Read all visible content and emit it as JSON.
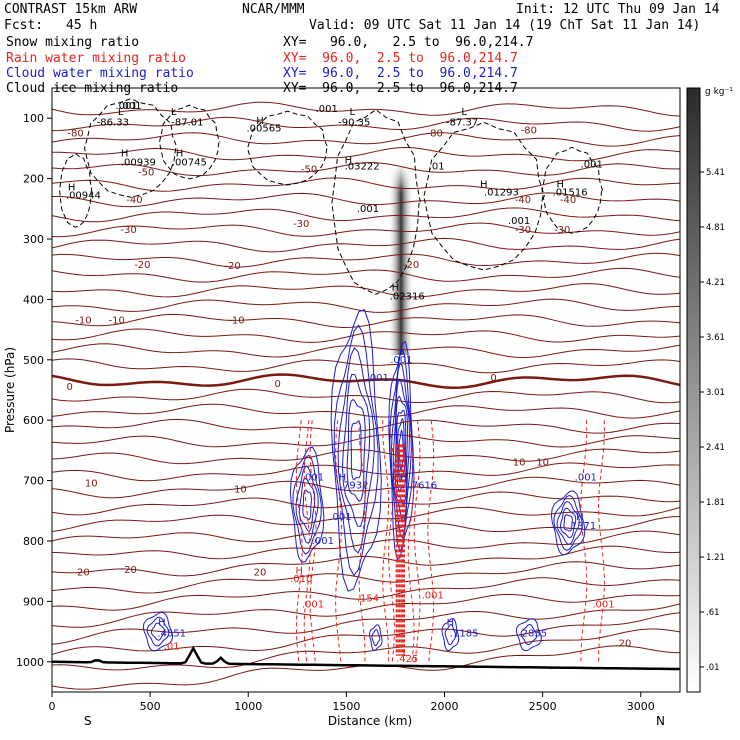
{
  "header": {
    "model": "CONTRAST 15km ARW",
    "center": "NCAR/MMM",
    "init": "Init: 12 UTC Thu 09 Jan 14",
    "fcst_label": "Fcst:",
    "fcst_value": "45 h",
    "valid": "Valid: 09 UTC Sat 11 Jan 14 (19 ChT Sat 11 Jan 14)"
  },
  "fields": [
    {
      "name": "Snow mixing ratio",
      "xy": "",
      "color": "#000000"
    },
    {
      "name": "Rain water mixing ratio",
      "xy": "XY=  96.0,  2.5 to  96.0,214.7",
      "color": "#e8231c"
    },
    {
      "name": "Cloud water mixing ratio",
      "xy": "XY=  96.0,  2.5 to  96.0,214.7",
      "color": "#1c1ccf"
    },
    {
      "name": "Cloud ice mixing ratio",
      "xy": "XY=  96.0,  2.5 to  96.0,214.7",
      "color": "#000000"
    }
  ],
  "snow_xy": "XY=   96.0,   2.5 to  96.0,214.7",
  "chart_data": {
    "type": "heatmap",
    "xlabel": "Distance (km)",
    "ylabel": "Pressure (hPa)",
    "xlim": [
      0,
      3200
    ],
    "ylim": [
      1050,
      50
    ],
    "x_ticks": [
      "0",
      "500",
      "1000",
      "1500",
      "2000",
      "2500",
      "3000"
    ],
    "y_ticks": [
      "100",
      "200",
      "300",
      "400",
      "500",
      "600",
      "700",
      "800",
      "900",
      "1000"
    ],
    "x_ends": [
      "S",
      "N"
    ],
    "colorbar": {
      "unit": "g kg⁻¹",
      "ticks": [
        "5.41",
        "4.81",
        "4.21",
        "3.61",
        "3.01",
        "2.41",
        "1.81",
        "1.21",
        ".61",
        ".01"
      ]
    },
    "temperature_contours": [
      {
        "label": "-80",
        "x": 120,
        "p": 130
      },
      {
        "label": "-80",
        "x": 1950,
        "p": 130
      },
      {
        "label": "-80",
        "x": 2430,
        "p": 125
      },
      {
        "label": "-50",
        "x": 480,
        "p": 195
      },
      {
        "label": "-50",
        "x": 1310,
        "p": 190
      },
      {
        "label": "-40",
        "x": 420,
        "p": 240
      },
      {
        "label": "-40",
        "x": 2400,
        "p": 240
      },
      {
        "label": "-40",
        "x": 2630,
        "p": 240
      },
      {
        "label": "-30",
        "x": 390,
        "p": 290
      },
      {
        "label": "-30",
        "x": 1270,
        "p": 280
      },
      {
        "label": "-30",
        "x": 2400,
        "p": 290
      },
      {
        "label": "-30",
        "x": 2600,
        "p": 290
      },
      {
        "label": "-20",
        "x": 460,
        "p": 348
      },
      {
        "label": "-20",
        "x": 920,
        "p": 350
      },
      {
        "label": "-20",
        "x": 1830,
        "p": 348
      },
      {
        "label": "-10",
        "x": 160,
        "p": 440
      },
      {
        "label": "-10",
        "x": 330,
        "p": 440
      },
      {
        "label": "-10",
        "x": 940,
        "p": 440
      },
      {
        "label": "0",
        "x": 90,
        "p": 550
      },
      {
        "label": "0",
        "x": 1150,
        "p": 545
      },
      {
        "label": "0",
        "x": 2250,
        "p": 535
      },
      {
        "label": "10",
        "x": 200,
        "p": 710
      },
      {
        "label": "10",
        "x": 960,
        "p": 720
      },
      {
        "label": "10",
        "x": 2380,
        "p": 675
      },
      {
        "label": "10",
        "x": 2500,
        "p": 675
      },
      {
        "label": "20",
        "x": 160,
        "p": 857
      },
      {
        "label": "20",
        "x": 400,
        "p": 853
      },
      {
        "label": "20",
        "x": 1060,
        "p": 857
      },
      {
        "label": "20",
        "x": 2920,
        "p": 975
      }
    ],
    "snow_extrema": [
      {
        "label": ".001",
        "x": 380,
        "p": 85
      },
      {
        "label": ".001",
        "x": 1400,
        "p": 90
      },
      {
        "label": "L",
        "x": 1530,
        "p": 95
      },
      {
        "label": "L",
        "x": 2100,
        "p": 95
      },
      {
        "label": "H",
        "x": 1510,
        "p": 175
      },
      {
        "label": "H",
        "x": 1750,
        "p": 385
      },
      {
        "label": ".001",
        "x": 1610,
        "p": 255
      }
    ],
    "ice_extrema": [
      {
        "label": ".001",
        "x": 400,
        "p": 85
      },
      {
        "label": "L",
        "x": 350,
        "p": 95
      },
      {
        "label": "L",
        "x": 620,
        "p": 95
      },
      {
        "label": "-86.33",
        "x": 310,
        "p": 112
      },
      {
        "label": "-87.01",
        "x": 690,
        "p": 112
      },
      {
        "label": "H",
        "x": 1060,
        "p": 110
      },
      {
        "label": ".00565",
        "x": 1080,
        "p": 122
      },
      {
        "label": "-90.35",
        "x": 1540,
        "p": 112
      },
      {
        "label": "-87.37",
        "x": 2090,
        "p": 112
      },
      {
        "label": "H",
        "x": 370,
        "p": 163
      },
      {
        "label": ".00939",
        "x": 440,
        "p": 178
      },
      {
        "label": "H",
        "x": 650,
        "p": 163
      },
      {
        "label": ".00745",
        "x": 700,
        "p": 178
      },
      {
        "label": ".01",
        "x": 1960,
        "p": 185
      },
      {
        "label": ".001",
        "x": 2750,
        "p": 182
      },
      {
        "label": ".03222",
        "x": 1580,
        "p": 185
      },
      {
        "label": "H",
        "x": 100,
        "p": 220
      },
      {
        "label": ".00944",
        "x": 160,
        "p": 233
      },
      {
        "label": "H",
        "x": 2200,
        "p": 215
      },
      {
        "label": ".01293",
        "x": 2290,
        "p": 228
      },
      {
        "label": "H",
        "x": 2590,
        "p": 215
      },
      {
        "label": ".01516",
        "x": 2640,
        "p": 228
      },
      {
        "label": ".001",
        "x": 2380,
        "p": 275
      },
      {
        "label": ".02316",
        "x": 1810,
        "p": 400
      }
    ],
    "cloud_water_extrema": [
      {
        "label": ".001",
        "x": 1780,
        "p": 505
      },
      {
        "label": ".001",
        "x": 1660,
        "p": 535
      },
      {
        "label": ".001",
        "x": 1330,
        "p": 700
      },
      {
        "label": "H",
        "x": 1480,
        "p": 700
      },
      {
        "label": ".7932",
        "x": 1540,
        "p": 713
      },
      {
        "label": "H",
        "x": 1790,
        "p": 700
      },
      {
        "label": ".7616",
        "x": 1890,
        "p": 713
      },
      {
        "label": ".001",
        "x": 1470,
        "p": 765
      },
      {
        "label": ".001",
        "x": 1380,
        "p": 805
      },
      {
        "label": ".001",
        "x": 2720,
        "p": 700
      },
      {
        "label": "H",
        "x": 2690,
        "p": 765
      },
      {
        "label": ".1371",
        "x": 2700,
        "p": 780
      },
      {
        "label": "H",
        "x": 560,
        "p": 940
      },
      {
        "label": ".4551",
        "x": 610,
        "p": 958
      },
      {
        "label": "H",
        "x": 2030,
        "p": 940
      },
      {
        "label": ".1185",
        "x": 2100,
        "p": 958
      },
      {
        "label": ".2835",
        "x": 2450,
        "p": 958
      }
    ],
    "rain_extrema": [
      {
        "label": "H",
        "x": 1260,
        "p": 855
      },
      {
        "label": ".010",
        "x": 1270,
        "p": 868
      },
      {
        "label": ".001",
        "x": 1330,
        "p": 910
      },
      {
        "label": ".001",
        "x": 1940,
        "p": 895
      },
      {
        "label": ".001",
        "x": 2810,
        "p": 910
      },
      {
        "label": ".154",
        "x": 1610,
        "p": 900
      },
      {
        "label": ".01",
        "x": 610,
        "p": 980
      },
      {
        "label": "L",
        "x": 1800,
        "p": 990
      },
      {
        "label": ".425",
        "x": 1810,
        "p": 1000
      }
    ]
  }
}
